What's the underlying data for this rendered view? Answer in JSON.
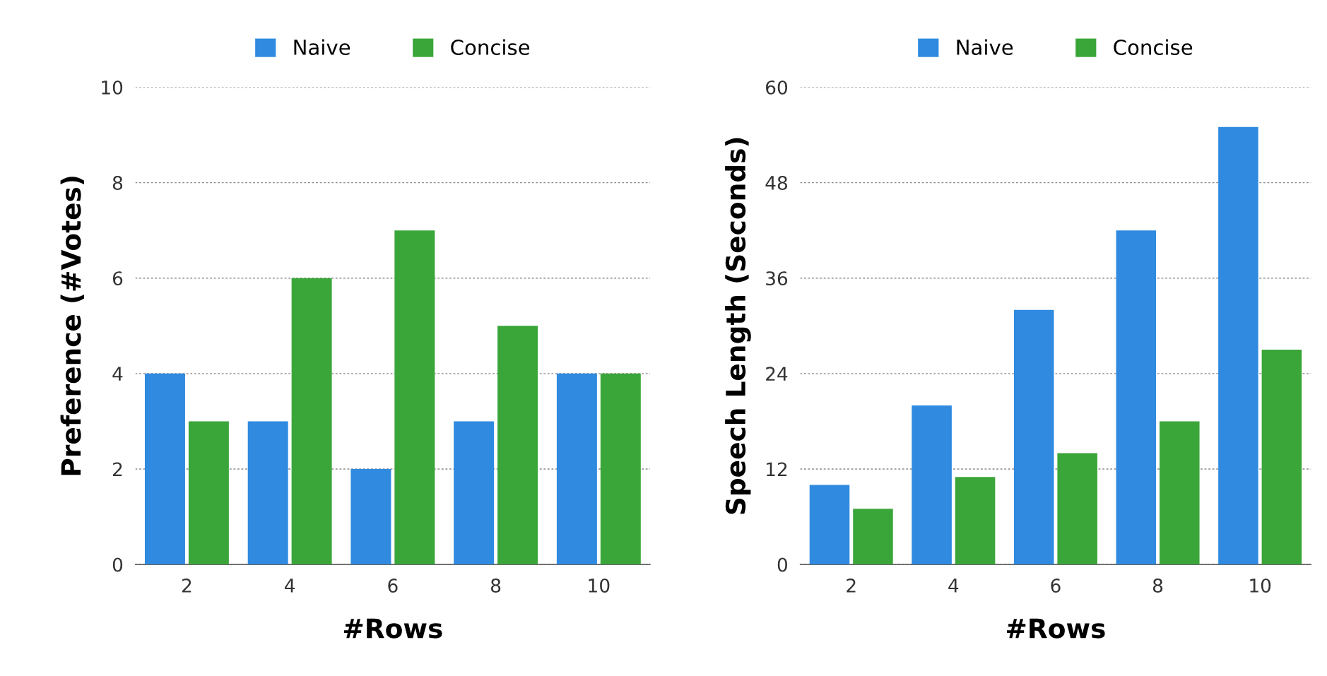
{
  "chart_data": [
    {
      "type": "bar",
      "xlabel": "#Rows",
      "ylabel": "Preference (#Votes)",
      "categories": [
        "2",
        "4",
        "6",
        "8",
        "10"
      ],
      "series": [
        {
          "name": "Naive",
          "color": "#2f8ae0",
          "values": [
            4,
            3,
            2,
            3,
            4
          ]
        },
        {
          "name": "Concise",
          "color": "#3aa63a",
          "values": [
            3,
            6,
            7,
            5,
            4
          ]
        }
      ],
      "ylim": [
        0,
        10
      ],
      "yticks": [
        0,
        2,
        4,
        6,
        8,
        10
      ],
      "grid": "y",
      "legend": "top"
    },
    {
      "type": "bar",
      "xlabel": "#Rows",
      "ylabel": "Speech Length (Seconds)",
      "categories": [
        "2",
        "4",
        "6",
        "8",
        "10"
      ],
      "series": [
        {
          "name": "Naive",
          "color": "#2f8ae0",
          "values": [
            10,
            20,
            32,
            42,
            55
          ]
        },
        {
          "name": "Concise",
          "color": "#3aa63a",
          "values": [
            7,
            11,
            14,
            18,
            27
          ]
        }
      ],
      "ylim": [
        0,
        60
      ],
      "yticks": [
        0,
        12,
        24,
        36,
        48,
        60
      ],
      "grid": "y",
      "legend": "top"
    }
  ]
}
